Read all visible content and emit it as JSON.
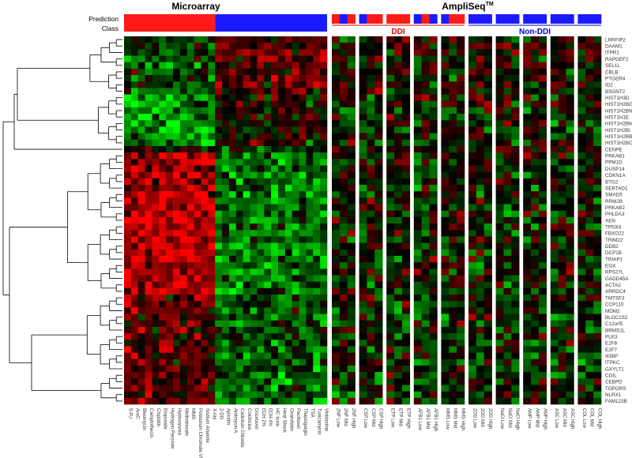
{
  "chart_data": {
    "type": "heatmap",
    "title_left": "Microarray",
    "title_right": "AmpliSeq",
    "title_right_sup": "TM",
    "prediction_label_line1": "Prediction",
    "prediction_label_line2": "Class",
    "group_ddi": "DDI",
    "group_nonddi": "Non-DDI",
    "colors": {
      "ddi": "#ff1a1a",
      "nonddi": "#1a1aff",
      "high": "#ff0000",
      "low": "#00ff00",
      "mid": "#000000",
      "group_ddi_text": "#e00000",
      "group_nonddi_text": "#0000e0"
    },
    "genes": [
      "LRRFIP2",
      "DAAM1",
      "ITPR1",
      "RAPGEF2",
      "SEL1L",
      "CBLB",
      "PTGER4",
      "ID2",
      "BSGNT2",
      "HIST1H3D",
      "HIST1H2BG",
      "HIST1H2BN",
      "HIST1H1E",
      "HIST1H2BM",
      "HIST1H2BI",
      "HIST1H2BB",
      "HIST1H2BC",
      "CENPE",
      "PRKAB1",
      "PPM1D",
      "DUSP14",
      "CDKN1A",
      "BTG2",
      "SERTAD1",
      "SMAD5",
      "RRM2B",
      "PRKAB2",
      "PHLDA3",
      "AEN",
      "TP53I3",
      "FBXO22",
      "TRIM22",
      "DDB2",
      "DCP1B",
      "TRIAP1",
      "EI24",
      "RPS27L",
      "GADD45A",
      "ACTA2",
      "ARRDC4",
      "TMTSF3",
      "CCP110",
      "MDM2",
      "BLOC1S2",
      "C12orf5",
      "BRMS1L",
      "PLK3",
      "E2F8",
      "E2F7",
      "IKBIP",
      "ITPKC",
      "GXYLT1",
      "COIL",
      "CEBPD",
      "TOPORS",
      "NLRX1",
      "FAM123B"
    ],
    "microarray_compounds": [
      "5-FU",
      "AraC",
      "Bleomycin",
      "Camptothecin",
      "Cisplatin",
      "Etoposide",
      "Hydrogen Peroxide",
      "Hydroxyurea",
      "Methotrexate",
      "MMS",
      "Potassium Chromate VI",
      "Sodium Arsenite",
      "X-ray",
      "2-DG",
      "Apicidin",
      "Antimycin A",
      "Cadmium Chloride",
      "Colchicine",
      "Docetaxel",
      "EDH 2%",
      "EDH 4%",
      "HC toxin",
      "Heat Shock",
      "Oxamflatin",
      "Paclitaxel",
      "Thapsigargin",
      "TSA",
      "Tunicamycin",
      "Vinblastine"
    ],
    "microarray_ddi_count": 13,
    "ampliseq_groups": [
      {
        "class": "DDI",
        "samples": [
          "2NF Low",
          "2NF Mid",
          "2NF High"
        ],
        "pattern": [
          "ddi",
          "nonddi",
          "ddi"
        ]
      },
      {
        "class": "DDI",
        "samples": [
          "CSP Low",
          "CSP Mid",
          "CSP High"
        ],
        "pattern": [
          "nonddi",
          "ddi",
          "ddi"
        ]
      },
      {
        "class": "DDI",
        "samples": [
          "ETP Low",
          "ETP Mid",
          "ETP High"
        ],
        "pattern": [
          "ddi",
          "ddi",
          "ddi"
        ]
      },
      {
        "class": "DDI",
        "samples": [
          "AFB1 Low",
          "AFB1 Mid",
          "AFB1 High"
        ],
        "pattern": [
          "nonddi",
          "ddi",
          "nonddi"
        ]
      },
      {
        "class": "DDI",
        "samples": [
          "MMS Low",
          "MMS Mid",
          "MMS High"
        ],
        "pattern": [
          "nonddi",
          "ddi",
          "ddi"
        ]
      },
      {
        "class": "Non-DDI",
        "samples": [
          "2DG Low",
          "2DG Mid",
          "2DG High"
        ],
        "pattern": [
          "nonddi",
          "nonddi",
          "nonddi"
        ]
      },
      {
        "class": "Non-DDI",
        "samples": [
          "NaCl Low",
          "NaCl Mid",
          "NaCl High"
        ],
        "pattern": [
          "nonddi",
          "nonddi",
          "nonddi"
        ]
      },
      {
        "class": "Non-DDI",
        "samples": [
          "AMP Low",
          "AMP Mid",
          "AMP High"
        ],
        "pattern": [
          "nonddi",
          "nonddi",
          "nonddi"
        ]
      },
      {
        "class": "Non-DDI",
        "samples": [
          "ASC Low",
          "ASC Mid",
          "ASC High"
        ],
        "pattern": [
          "nonddi",
          "nonddi",
          "nonddi"
        ]
      },
      {
        "class": "Non-DDI",
        "samples": [
          "COL Low",
          "COL Mid",
          "COL High"
        ],
        "pattern": [
          "nonddi",
          "nonddi",
          "nonddi"
        ]
      }
    ],
    "gene_clusters": [
      {
        "genes": [
          "LRRFIP2",
          "DAAM1",
          "ITPR1",
          "RAPGEF2",
          "SEL1L",
          "CBLB",
          "PTGER4",
          "ID2",
          "BSGNT2"
        ],
        "microarray_ddi": -0.25,
        "microarray_nonddi": 0.3,
        "ampliseq": 0.05
      },
      {
        "genes": [
          "HIST1H3D",
          "HIST1H2BG",
          "HIST1H2BN",
          "HIST1H1E",
          "HIST1H2BM",
          "HIST1H2BI",
          "HIST1H2BB",
          "HIST1H2BC"
        ],
        "microarray_ddi": -0.55,
        "microarray_nonddi": 0.05,
        "ampliseq": -0.05
      },
      {
        "genes": [
          "CENPE"
        ],
        "microarray_ddi": 0.1,
        "microarray_nonddi": -0.1,
        "ampliseq": 0.1
      },
      {
        "genes": [
          "PRKAB1",
          "PPM1D",
          "DUSP14",
          "CDKN1A",
          "BTG2",
          "SERTAD1",
          "SMAD5",
          "RRM2B",
          "PRKAB2",
          "PHLDA3",
          "AEN",
          "TP53I3",
          "FBXO22",
          "TRIM22",
          "DDB2",
          "DCP1B",
          "TRIAP1",
          "EI24",
          "RPS27L",
          "GADD45A",
          "ACTA2",
          "ARRDC4"
        ],
        "microarray_ddi": 0.65,
        "microarray_nonddi": -0.45,
        "ampliseq": -0.05
      },
      {
        "genes": [
          "TMTSF3",
          "CCP110",
          "MDM2",
          "BLOC1S2",
          "C12orf5",
          "BRMS1L",
          "PLK3",
          "E2F8",
          "E2F7",
          "IKBIP",
          "ITPKC",
          "GXYLT1"
        ],
        "microarray_ddi": 0.35,
        "microarray_nonddi": -0.3,
        "ampliseq": -0.1
      },
      {
        "genes": [
          "COIL",
          "CEBPD",
          "TOPORS",
          "NLRX1",
          "FAM123B"
        ],
        "microarray_ddi": 0.3,
        "microarray_nonddi": -0.4,
        "ampliseq": -0.05
      }
    ]
  }
}
